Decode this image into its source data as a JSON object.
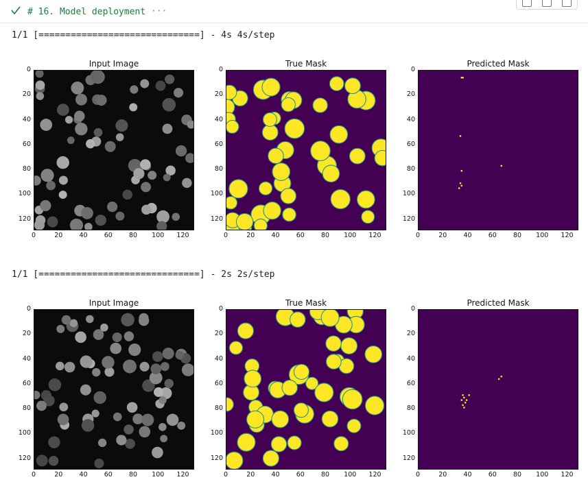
{
  "cell": {
    "title": "# 16. Model deployment",
    "more": "···",
    "status_icon": "check-icon",
    "toolbar_icons": [
      "copy-icon",
      "square-icon",
      "trash-icon"
    ]
  },
  "outputs": [
    {
      "progress_line": "1/1 [==============================] - 4s 4s/step",
      "panels": [
        {
          "title": "Input Image",
          "kind": "gray"
        },
        {
          "title": "True Mask",
          "kind": "mask"
        },
        {
          "title": "Predicted Mask",
          "kind": "pred"
        }
      ]
    },
    {
      "progress_line": "1/1 [==============================] - 2s 2s/step",
      "panels": [
        {
          "title": "Input Image",
          "kind": "gray"
        },
        {
          "title": "True Mask",
          "kind": "mask"
        },
        {
          "title": "Predicted Mask",
          "kind": "pred"
        }
      ]
    }
  ],
  "axes": {
    "y_ticks": [
      "0",
      "20",
      "40",
      "60",
      "80",
      "100",
      "120"
    ],
    "x_ticks": [
      "0",
      "20",
      "40",
      "60",
      "80",
      "100",
      "120"
    ]
  },
  "colors": {
    "mask_bg": "#440154",
    "mask_fg": "#fde725",
    "mask_edge": "#21918c",
    "gray_bg": "#0b0b0b",
    "cell_green": "#1a7f37"
  }
}
